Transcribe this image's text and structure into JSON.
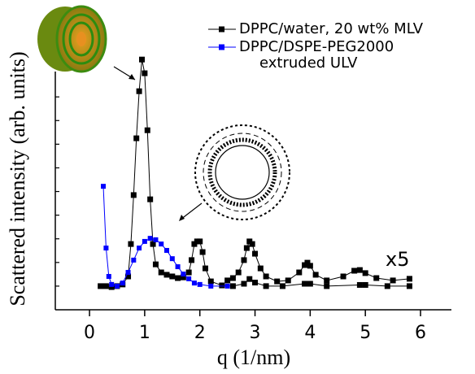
{
  "chart_data": {
    "type": "line",
    "xlabel": "q (1/nm)",
    "ylabel": "Scattered intensity (arb. units)",
    "annotation": "x5",
    "xlim": [
      -0.62,
      6.56
    ],
    "xticks": [
      0,
      1,
      2,
      3,
      4,
      5,
      6
    ],
    "ylim": [
      0,
      11
    ],
    "yticks": [
      1,
      2,
      3,
      4,
      5,
      6,
      7,
      8,
      9
    ],
    "series": [
      {
        "name": "DPPC/water, 20 wt% MLV",
        "color": "#000000",
        "x": [
          0.2,
          0.3,
          0.4,
          0.5,
          0.6,
          0.7,
          0.75,
          0.8,
          0.85,
          0.9,
          0.95,
          1.0,
          1.05,
          1.1,
          1.15,
          1.2,
          1.3,
          1.4,
          1.5,
          1.6,
          1.7,
          1.8,
          1.85,
          1.9,
          1.95,
          2.0,
          2.05,
          2.1,
          2.2,
          2.4,
          2.6,
          2.8,
          2.9,
          3.0,
          3.2,
          3.5,
          3.9,
          4.0,
          4.3,
          4.9,
          5.0,
          5.4,
          5.8
        ],
        "values": [
          1.0,
          1.0,
          0.96,
          1.0,
          1.07,
          1.41,
          2.78,
          4.85,
          7.25,
          9.24,
          10.58,
          10.0,
          7.59,
          4.67,
          2.78,
          1.92,
          1.58,
          1.48,
          1.41,
          1.34,
          1.37,
          1.58,
          2.1,
          2.78,
          2.89,
          2.89,
          2.44,
          1.75,
          1.2,
          1.03,
          1.0,
          1.1,
          1.3,
          1.15,
          1.0,
          1.0,
          1.1,
          1.1,
          1.0,
          1.05,
          1.05,
          1.0,
          1.0
        ]
      },
      {
        "name": "DPPC/DSPE-PEG2000 extruded ULV",
        "color": "#0000ff",
        "x": [
          0.25,
          0.3,
          0.35,
          0.4,
          0.5,
          0.6,
          0.7,
          0.8,
          0.9,
          1.0,
          1.1,
          1.2,
          1.3,
          1.4,
          1.5,
          1.6,
          1.7,
          1.8,
          1.9,
          2.0,
          2.2,
          2.5
        ],
        "values": [
          5.22,
          2.61,
          1.41,
          1.07,
          1.0,
          1.13,
          1.58,
          2.1,
          2.61,
          2.89,
          3.02,
          2.96,
          2.78,
          2.51,
          2.16,
          1.82,
          1.51,
          1.31,
          1.13,
          1.07,
          1.0,
          1.0
        ]
      },
      {
        "color": "#000000",
        "x": [
          2.5,
          2.6,
          2.7,
          2.8,
          2.85,
          2.9,
          2.95,
          3.0,
          3.1,
          3.2,
          3.4,
          3.6,
          3.8,
          3.9,
          3.95,
          4.0,
          4.1,
          4.3,
          4.6,
          4.8,
          4.9,
          5.0,
          5.2,
          5.5,
          5.8
        ],
        "values": [
          1.24,
          1.34,
          1.58,
          2.1,
          2.61,
          2.89,
          2.78,
          2.37,
          1.75,
          1.41,
          1.2,
          1.24,
          1.58,
          1.89,
          1.99,
          1.86,
          1.48,
          1.24,
          1.41,
          1.65,
          1.68,
          1.55,
          1.34,
          1.24,
          1.31
        ]
      }
    ]
  }
}
